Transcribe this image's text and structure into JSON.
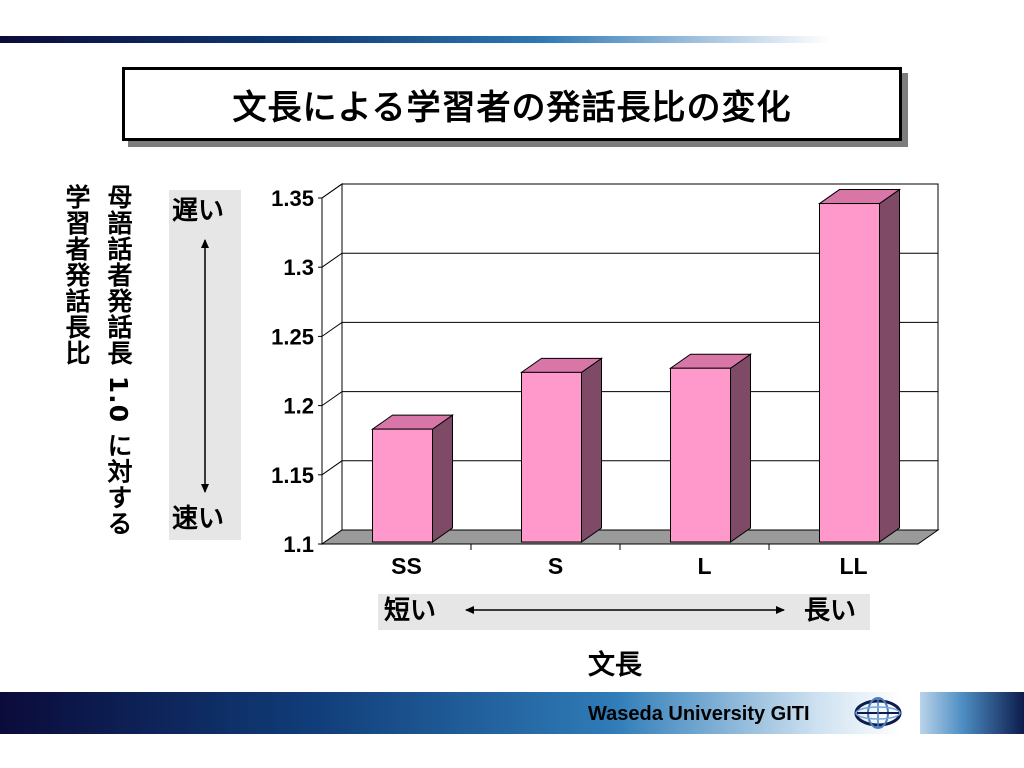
{
  "chart_data": {
    "type": "bar",
    "title": "文長による学習者の発話長比の変化",
    "categories": [
      "SS",
      "S",
      "L",
      "LL"
    ],
    "values": [
      1.183,
      1.224,
      1.227,
      1.346
    ],
    "ylim": [
      1.1,
      1.35
    ],
    "yticks": [
      "1.1",
      "1.15",
      "1.2",
      "1.25",
      "1.3",
      "1.35"
    ],
    "xlabel": "文長",
    "ylabel_learner": "学習者発話長比",
    "ylabel_native": "母語話者発話長 1.0 に対する",
    "grid": true,
    "bar_color": "#ff99cc",
    "bar_side_color": "#7f4a66",
    "gridline_color": "#000000",
    "legend": "none"
  },
  "annotations": {
    "speed_slow": "遅い",
    "speed_fast": "速い",
    "length_short": "短い",
    "length_long": "長い"
  },
  "footer": {
    "org": "Waseda University GITI"
  }
}
